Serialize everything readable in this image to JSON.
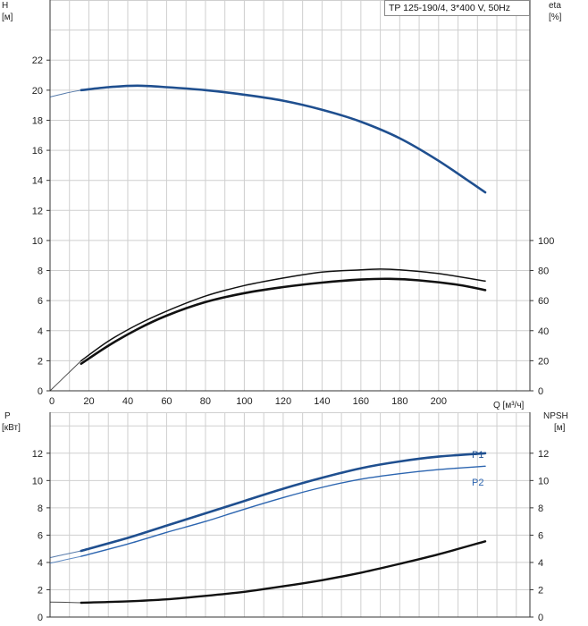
{
  "product_label": "TP 125-190/4, 3*400 V, 50Hz",
  "chart_data": [
    {
      "type": "line",
      "panel": "head-efficiency",
      "left_axis": {
        "label": "H",
        "unit": "[м]",
        "ticks": [
          0,
          2,
          4,
          6,
          8,
          10,
          12,
          14,
          16,
          18,
          20,
          22
        ],
        "ylim": [
          0,
          26
        ]
      },
      "right_axis": {
        "label": "eta",
        "unit": "[%]",
        "ticks": [
          0,
          20,
          40,
          60,
          80,
          100
        ],
        "ylim": [
          0,
          260
        ]
      },
      "x_axis": {
        "label": "Q [м³/ч]",
        "ticks": [
          0,
          20,
          40,
          60,
          80,
          100,
          120,
          140,
          160,
          180,
          200
        ],
        "xlim": [
          0,
          247
        ]
      },
      "grid": true,
      "series": [
        {
          "axis": "left",
          "color": "#1f4f8f",
          "width": 2.6,
          "x": [
            16,
            30,
            45,
            60,
            80,
            100,
            120,
            140,
            160,
            180,
            200,
            224
          ],
          "y": [
            20.0,
            20.2,
            20.3,
            20.2,
            20.0,
            19.7,
            19.3,
            18.7,
            17.9,
            16.8,
            15.3,
            13.2
          ],
          "ext_x": [
            0,
            8,
            16
          ],
          "ext_y": [
            19.55,
            19.8,
            20.0
          ]
        },
        {
          "axis": "right",
          "color": "#111111",
          "width": 1.5,
          "x": [
            16,
            30,
            45,
            60,
            80,
            100,
            120,
            140,
            160,
            170,
            180,
            200,
            224
          ],
          "y": [
            20,
            33,
            44,
            53,
            63,
            70,
            75,
            79,
            80.5,
            81,
            80.5,
            78,
            73
          ],
          "ext_x": [
            0,
            8,
            16
          ],
          "ext_y": [
            0,
            10,
            20
          ]
        },
        {
          "axis": "left",
          "color": "#111111",
          "width": 2.6,
          "x": [
            16,
            30,
            45,
            60,
            80,
            100,
            120,
            140,
            160,
            175,
            190,
            210,
            224
          ],
          "y": [
            1.8,
            3.0,
            4.1,
            5.0,
            5.9,
            6.5,
            6.9,
            7.2,
            7.4,
            7.45,
            7.35,
            7.05,
            6.7
          ]
        }
      ]
    },
    {
      "type": "line",
      "panel": "power-npsh",
      "left_axis": {
        "label": "P",
        "unit": "[кВт]",
        "ticks": [
          0,
          2,
          4,
          6,
          8,
          10,
          12
        ],
        "ylim": [
          0,
          15
        ]
      },
      "right_axis": {
        "label": "NPSH",
        "unit": "[м]",
        "ticks": [
          0,
          2,
          4,
          6,
          8,
          10,
          12
        ],
        "ylim": [
          0,
          15
        ]
      },
      "x_axis": {
        "xlim": [
          0,
          247
        ]
      },
      "grid": true,
      "series": [
        {
          "name": "P1",
          "axis": "left",
          "color": "#1f4f8f",
          "width": 2.6,
          "x": [
            16,
            40,
            60,
            80,
            100,
            120,
            140,
            160,
            180,
            200,
            224
          ],
          "y": [
            4.85,
            5.8,
            6.7,
            7.6,
            8.5,
            9.4,
            10.2,
            10.9,
            11.4,
            11.75,
            12.0
          ],
          "ext_x": [
            0,
            8,
            16
          ],
          "ext_y": [
            4.35,
            4.6,
            4.85
          ]
        },
        {
          "name": "P2",
          "axis": "left",
          "color": "#2c65b0",
          "width": 1.4,
          "x": [
            16,
            40,
            60,
            80,
            100,
            120,
            140,
            160,
            180,
            200,
            224
          ],
          "y": [
            4.45,
            5.35,
            6.2,
            7.0,
            7.9,
            8.75,
            9.5,
            10.1,
            10.5,
            10.8,
            11.05
          ],
          "ext_x": [
            0,
            8,
            16
          ],
          "ext_y": [
            3.95,
            4.2,
            4.45
          ]
        },
        {
          "axis": "right",
          "color": "#111111",
          "width": 2.4,
          "x": [
            16,
            40,
            60,
            80,
            100,
            120,
            140,
            160,
            180,
            200,
            224
          ],
          "y": [
            1.05,
            1.15,
            1.3,
            1.55,
            1.85,
            2.25,
            2.7,
            3.25,
            3.9,
            4.6,
            5.55
          ],
          "ext_x": [
            0,
            8,
            16
          ],
          "ext_y": [
            1.1,
            1.08,
            1.05
          ]
        }
      ]
    }
  ]
}
